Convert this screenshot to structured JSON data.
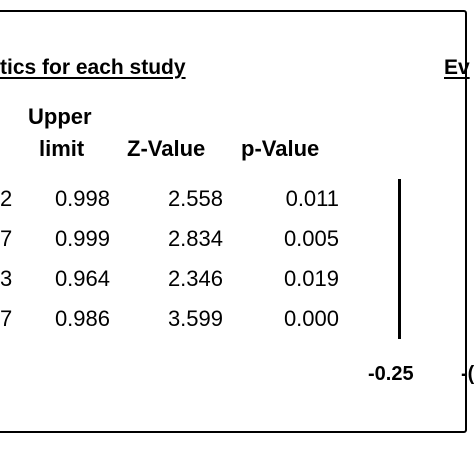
{
  "section_titles": {
    "stats": "tics for each study",
    "effect": "Ev"
  },
  "headers": {
    "upper_line1": "Upper",
    "upper_line2": "limit",
    "z_value": "Z-Value",
    "p_value": "p-Value"
  },
  "rows": [
    {
      "lower_fragment": "2",
      "upper": "0.998",
      "z": "2.558",
      "p": "0.011"
    },
    {
      "lower_fragment": "7",
      "upper": "0.999",
      "z": "2.834",
      "p": "0.005"
    },
    {
      "lower_fragment": "3",
      "upper": "0.964",
      "z": "2.346",
      "p": "0.019"
    },
    {
      "lower_fragment": "7",
      "upper": "0.986",
      "z": "3.599",
      "p": "0.000"
    }
  ],
  "axis": {
    "tick_left": "-0.25",
    "tick_next_fragment": "-("
  }
}
